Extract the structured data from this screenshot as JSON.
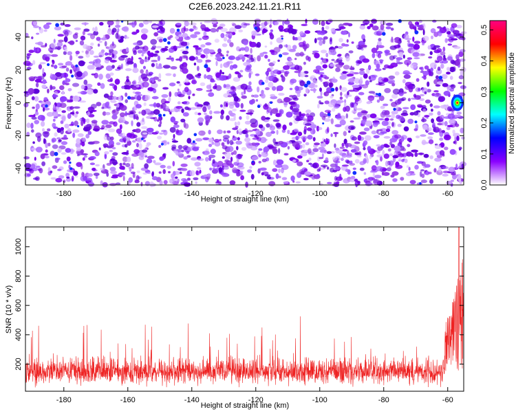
{
  "title": "C2E6.2023.242.11.21.R11",
  "chart_data": [
    {
      "type": "heatmap",
      "xlabel": "Height of straight line (km)",
      "ylabel": "Frequency (Hz)",
      "xlim": [
        -192,
        -55
      ],
      "ylim": [
        -50,
        50
      ],
      "x_ticks": [
        -180,
        -160,
        -140,
        -120,
        -100,
        -80,
        -60
      ],
      "y_ticks": [
        -40,
        -20,
        0,
        20,
        40
      ],
      "colorbar": {
        "label": "Normalized spectral amplitude",
        "range": [
          0,
          0.53
        ],
        "ticks": [
          0.0,
          0.1,
          0.2,
          0.3,
          0.4,
          0.5
        ],
        "colormap": [
          "#ffffff",
          "#8a00ff",
          "#0000ff",
          "#00ffff",
          "#00ff00",
          "#ffff00",
          "#ff0000",
          "#ff0080"
        ]
      },
      "dominant_color": "#7a00ee",
      "hotspot": {
        "x": -57,
        "y": 0,
        "value": 0.45
      }
    },
    {
      "type": "line",
      "xlabel": "Height of straight line (km)",
      "ylabel": "SNR (10 * v/v)",
      "xlim": [
        -192,
        -55
      ],
      "ylim": [
        15,
        1135
      ],
      "x_ticks": [
        -180,
        -160,
        -140,
        -120,
        -100,
        -80,
        -60
      ],
      "y_ticks": [
        200,
        400,
        600,
        800,
        1000
      ],
      "color": "#ee2222",
      "baseline": 150,
      "typical_spread": 60,
      "max_background": 450,
      "peak": {
        "x": -56.5,
        "y": 1135
      }
    }
  ]
}
